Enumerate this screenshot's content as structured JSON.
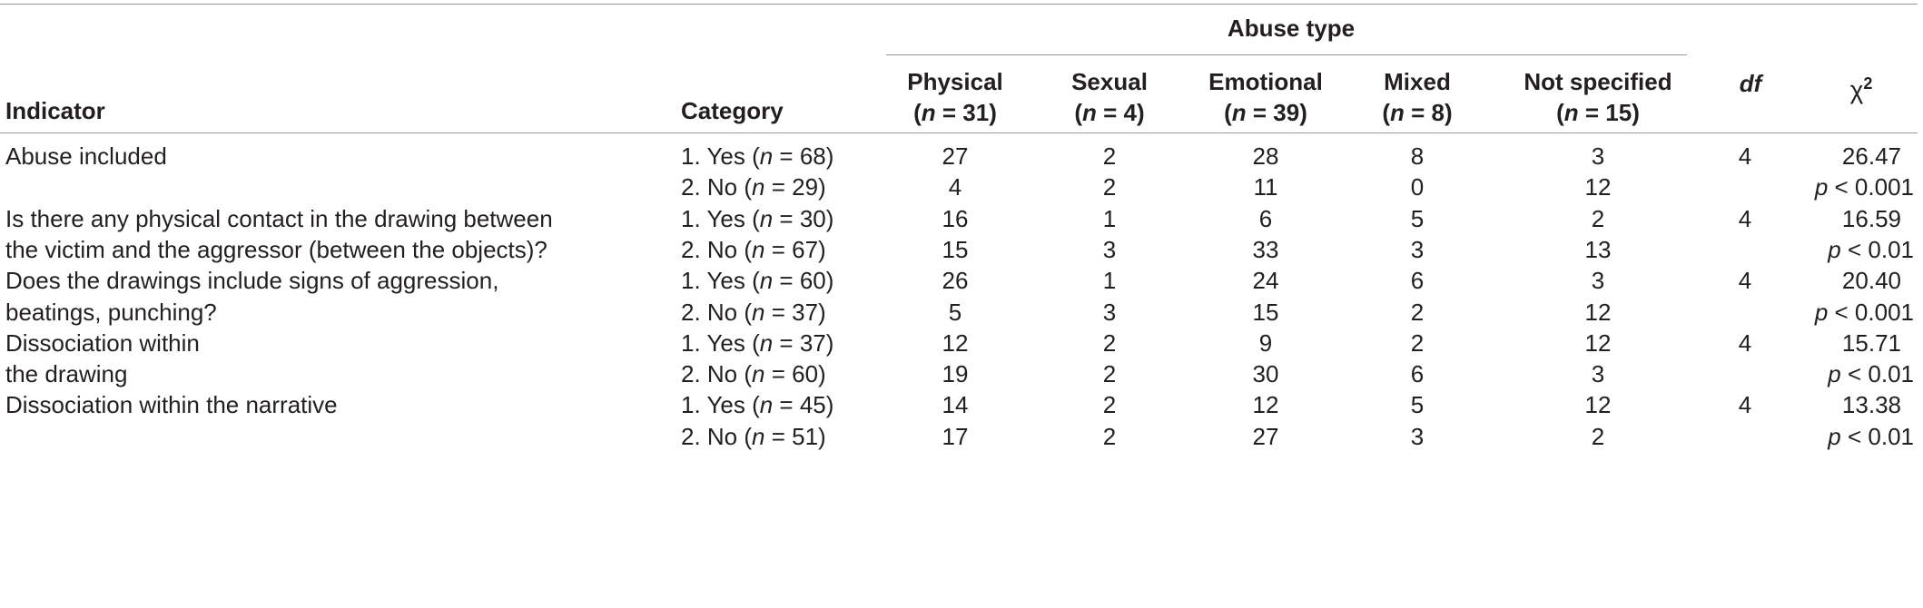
{
  "header": {
    "indicator": "Indicator",
    "category": "Category",
    "abuse_type": "Abuse type",
    "df": "df",
    "chi": "χ",
    "chi_sup": "2",
    "columns": [
      {
        "name": "Physical",
        "n_label": "n",
        "n_value": "= 31)"
      },
      {
        "name": "Sexual",
        "n_label": "n",
        "n_value": "= 4)"
      },
      {
        "name": "Emotional",
        "n_label": "n",
        "n_value": "= 39)"
      },
      {
        "name": "Mixed",
        "n_label": "n",
        "n_value": "= 8)"
      },
      {
        "name": "Not specified",
        "n_label": "n",
        "n_value": "= 15)"
      }
    ]
  },
  "rows": [
    {
      "indicator_lines": [
        "Abuse included",
        ""
      ],
      "df": "4",
      "chi2": "26.47",
      "p_label": "p",
      "p_value": "< 0.001",
      "cats": [
        {
          "prefix": "1. Yes (",
          "n": "n",
          "suffix": " = 68)",
          "values": [
            "27",
            "2",
            "28",
            "8",
            "3"
          ]
        },
        {
          "prefix": "2. No (",
          "n": "n",
          "suffix": " = 29)",
          "values": [
            "4",
            "2",
            "11",
            "0",
            "12"
          ]
        }
      ]
    },
    {
      "indicator_lines": [
        "Is there any physical contact in the drawing between",
        "the victim and the aggressor (between the objects)?"
      ],
      "df": "4",
      "chi2": "16.59",
      "p_label": "p",
      "p_value": "< 0.01",
      "cats": [
        {
          "prefix": "1. Yes (",
          "n": "n",
          "suffix": " = 30)",
          "values": [
            "16",
            "1",
            "6",
            "5",
            "2"
          ]
        },
        {
          "prefix": "2. No (",
          "n": "n",
          "suffix": " = 67)",
          "values": [
            "15",
            "3",
            "33",
            "3",
            "13"
          ]
        }
      ]
    },
    {
      "indicator_lines": [
        "Does the drawings include signs of aggression,",
        "beatings, punching?"
      ],
      "df": "4",
      "chi2": "20.40",
      "p_label": "p",
      "p_value": "< 0.001",
      "cats": [
        {
          "prefix": "1. Yes (",
          "n": "n",
          "suffix": " = 60)",
          "values": [
            "26",
            "1",
            "24",
            "6",
            "3"
          ]
        },
        {
          "prefix": "2. No (",
          "n": "n",
          "suffix": " = 37)",
          "values": [
            "5",
            "3",
            "15",
            "2",
            "12"
          ]
        }
      ]
    },
    {
      "indicator_lines": [
        "Dissociation within",
        "the drawing"
      ],
      "df": "4",
      "chi2": "15.71",
      "p_label": "p",
      "p_value": "< 0.01",
      "cats": [
        {
          "prefix": "1. Yes (",
          "n": "n",
          "suffix": " = 37)",
          "values": [
            "12",
            "2",
            "9",
            "2",
            "12"
          ]
        },
        {
          "prefix": "2. No (",
          "n": "n",
          "suffix": " = 60)",
          "values": [
            "19",
            "2",
            "30",
            "6",
            "3"
          ]
        }
      ]
    },
    {
      "indicator_lines": [
        "Dissociation within the narrative",
        ""
      ],
      "df": "4",
      "chi2": "13.38",
      "p_label": "p",
      "p_value": "< 0.01",
      "cats": [
        {
          "prefix": "1. Yes (",
          "n": "n",
          "suffix": " = 45)",
          "values": [
            "14",
            "2",
            "12",
            "5",
            "12"
          ]
        },
        {
          "prefix": "2. No (",
          "n": "n",
          "suffix": " = 51)",
          "values": [
            "17",
            "2",
            "27",
            "3",
            "2"
          ]
        }
      ]
    }
  ]
}
